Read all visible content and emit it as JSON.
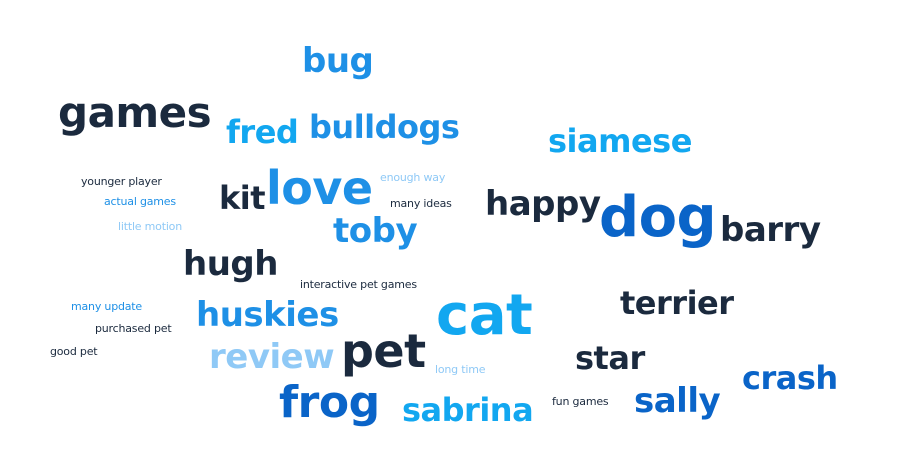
{
  "palette": {
    "navy": "#1b2a3e",
    "blue": "#0a64c8",
    "azure": "#1e90e6",
    "sky": "#12a7f0",
    "light": "#8fc9f6"
  },
  "words": [
    {
      "text": "bug",
      "color": "azure"
    },
    {
      "text": "games",
      "color": "navy"
    },
    {
      "text": "fred",
      "color": "sky"
    },
    {
      "text": "bulldogs",
      "color": "azure"
    },
    {
      "text": "siamese",
      "color": "sky"
    },
    {
      "text": "younger player",
      "color": "navy"
    },
    {
      "text": "kit",
      "color": "navy"
    },
    {
      "text": "love",
      "color": "azure"
    },
    {
      "text": "enough way",
      "color": "light"
    },
    {
      "text": "actual games",
      "color": "azure"
    },
    {
      "text": "many ideas",
      "color": "navy"
    },
    {
      "text": "happy",
      "color": "navy"
    },
    {
      "text": "dog",
      "color": "blue"
    },
    {
      "text": "barry",
      "color": "navy"
    },
    {
      "text": "little motion",
      "color": "light"
    },
    {
      "text": "toby",
      "color": "azure"
    },
    {
      "text": "hugh",
      "color": "navy"
    },
    {
      "text": "interactive pet games",
      "color": "navy"
    },
    {
      "text": "terrier",
      "color": "navy"
    },
    {
      "text": "many update",
      "color": "azure"
    },
    {
      "text": "huskies",
      "color": "azure"
    },
    {
      "text": "cat",
      "color": "sky"
    },
    {
      "text": "purchased pet",
      "color": "navy"
    },
    {
      "text": "good pet",
      "color": "navy"
    },
    {
      "text": "review",
      "color": "light"
    },
    {
      "text": "pet",
      "color": "navy"
    },
    {
      "text": "star",
      "color": "navy"
    },
    {
      "text": "long time",
      "color": "light"
    },
    {
      "text": "crash",
      "color": "blue"
    },
    {
      "text": "frog",
      "color": "blue"
    },
    {
      "text": "sabrina",
      "color": "sky"
    },
    {
      "text": "fun games",
      "color": "navy"
    },
    {
      "text": "sally",
      "color": "blue"
    }
  ]
}
